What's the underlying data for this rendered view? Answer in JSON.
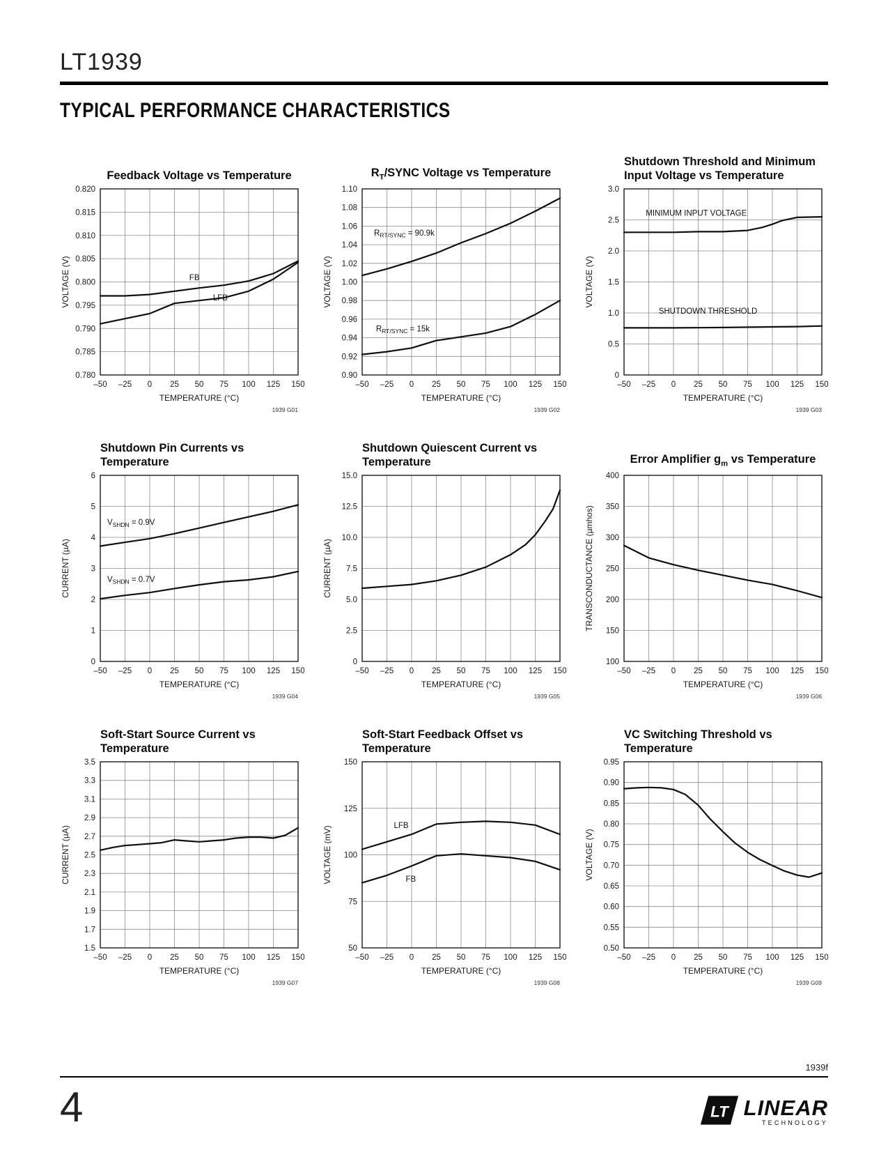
{
  "header": {
    "part": "LT1939",
    "section_title": "TYPICAL PERFORMANCE CHARACTERISTICS"
  },
  "footer": {
    "doc_code": "1939f",
    "page_number": "4",
    "logo": {
      "mark": "LT",
      "name": "LINEAR",
      "sub": "TECHNOLOGY"
    }
  },
  "chart_data": [
    {
      "type": "line",
      "ref": "1939 G01",
      "title_lines": [
        "Feedback Voltage vs Temperature"
      ],
      "xlabel": "TEMPERATURE (°C)",
      "ylabel": "VOLTAGE (V)",
      "xlim": [
        -50,
        150
      ],
      "xticks": [
        -50,
        -25,
        0,
        25,
        50,
        75,
        100,
        125,
        150
      ],
      "xticklabels": [
        "–50",
        "–25",
        "0",
        "25",
        "50",
        "75",
        "100",
        "125",
        "150"
      ],
      "ylim": [
        0.78,
        0.82
      ],
      "yticks": [
        0.78,
        0.785,
        0.79,
        0.795,
        0.8,
        0.805,
        0.81,
        0.815,
        0.82
      ],
      "yticklabels": [
        "0.780",
        "0.785",
        "0.790",
        "0.795",
        "0.800",
        "0.805",
        "0.810",
        "0.815",
        "0.820"
      ],
      "series": [
        {
          "name": "FB",
          "x": [
            -50,
            -25,
            0,
            25,
            50,
            75,
            100,
            125,
            150
          ],
          "y": [
            0.797,
            0.797,
            0.7973,
            0.798,
            0.7987,
            0.7993,
            0.8002,
            0.8018,
            0.8045
          ]
        },
        {
          "name": "LFB",
          "x": [
            -50,
            -25,
            0,
            25,
            50,
            75,
            100,
            125,
            150
          ],
          "y": [
            0.791,
            0.7921,
            0.7932,
            0.7954,
            0.796,
            0.7966,
            0.798,
            0.8006,
            0.8042
          ]
        }
      ],
      "labels": [
        {
          "text": "FB",
          "x": 40,
          "y": 0.8004,
          "anchor": "start"
        },
        {
          "text": "LFB",
          "x": 64,
          "y": 0.796,
          "anchor": "start"
        }
      ]
    },
    {
      "type": "line",
      "ref": "1939 G02",
      "title_lines": [
        "R_{T}/SYNC Voltage vs Temperature"
      ],
      "xlabel": "TEMPERATURE (°C)",
      "ylabel": "VOLTAGE (V)",
      "xlim": [
        -50,
        150
      ],
      "xticks": [
        -50,
        -25,
        0,
        25,
        50,
        75,
        100,
        125,
        150
      ],
      "xticklabels": [
        "–50",
        "–25",
        "0",
        "25",
        "50",
        "75",
        "100",
        "125",
        "150"
      ],
      "ylim": [
        0.9,
        1.1
      ],
      "yticks": [
        0.9,
        0.92,
        0.94,
        0.96,
        0.98,
        1.0,
        1.02,
        1.04,
        1.06,
        1.08,
        1.1
      ],
      "yticklabels": [
        "0.90",
        "0.92",
        "0.94",
        "0.96",
        "0.98",
        "1.00",
        "1.02",
        "1.04",
        "1.06",
        "1.08",
        "1.10"
      ],
      "series": [
        {
          "name": "RT-SYNC-90.9k",
          "x": [
            -50,
            -25,
            0,
            25,
            50,
            75,
            100,
            125,
            150
          ],
          "y": [
            1.007,
            1.014,
            1.022,
            1.031,
            1.042,
            1.052,
            1.063,
            1.076,
            1.09
          ]
        },
        {
          "name": "RT-SYNC-15k",
          "x": [
            -50,
            -25,
            0,
            25,
            50,
            75,
            100,
            125,
            150
          ],
          "y": [
            0.922,
            0.925,
            0.929,
            0.937,
            0.941,
            0.945,
            0.952,
            0.965,
            0.98
          ]
        }
      ],
      "labels": [
        {
          "text": "R_{RT/SYNC} = 90.9k",
          "x": -38,
          "y": 1.05,
          "anchor": "start"
        },
        {
          "text": "R_{RT/SYNC} = 15k",
          "x": -36,
          "y": 0.947,
          "anchor": "start"
        }
      ]
    },
    {
      "type": "line",
      "ref": "1939 G03",
      "title_lines": [
        "Shutdown Threshold and Minimum",
        "Input Voltage vs Temperature"
      ],
      "xlabel": "TEMPERATURE (°C)",
      "ylabel": "VOLTAGE (V)",
      "xlim": [
        -50,
        150
      ],
      "xticks": [
        -50,
        -25,
        0,
        25,
        50,
        75,
        100,
        125,
        150
      ],
      "xticklabels": [
        "–50",
        "–25",
        "0",
        "25",
        "50",
        "75",
        "100",
        "125",
        "150"
      ],
      "ylim": [
        0,
        3.0
      ],
      "yticks": [
        0,
        0.5,
        1.0,
        1.5,
        2.0,
        2.5,
        3.0
      ],
      "yticklabels": [
        "0",
        "0.5",
        "1.0",
        "1.5",
        "2.0",
        "2.5",
        "3.0"
      ],
      "series": [
        {
          "name": "minimum-input-voltage",
          "x": [
            -50,
            -25,
            0,
            25,
            50,
            75,
            90,
            100,
            110,
            125,
            150
          ],
          "y": [
            2.3,
            2.3,
            2.3,
            2.31,
            2.31,
            2.33,
            2.38,
            2.43,
            2.49,
            2.54,
            2.55
          ]
        },
        {
          "name": "shutdown-threshold",
          "x": [
            -50,
            0,
            50,
            100,
            125,
            150
          ],
          "y": [
            0.76,
            0.76,
            0.765,
            0.775,
            0.78,
            0.79
          ]
        }
      ],
      "labels": [
        {
          "text": "MINIMUM INPUT VOLTAGE",
          "x": -28,
          "y": 2.565,
          "anchor": "start"
        },
        {
          "text": "SHUTDOWN THRESHOLD",
          "x": -15,
          "y": 0.99,
          "anchor": "start"
        }
      ]
    },
    {
      "type": "line",
      "ref": "1939 G04",
      "title_lines": [
        "Shutdown Pin Currents vs",
        "Temperature"
      ],
      "xlabel": "TEMPERATURE (°C)",
      "ylabel": "CURRENT (µA)",
      "xlim": [
        -50,
        150
      ],
      "xticks": [
        -50,
        -25,
        0,
        25,
        50,
        75,
        100,
        125,
        150
      ],
      "xticklabels": [
        "–50",
        "–25",
        "0",
        "25",
        "50",
        "75",
        "100",
        "125",
        "150"
      ],
      "ylim": [
        0,
        6
      ],
      "yticks": [
        0,
        1,
        2,
        3,
        4,
        5,
        6
      ],
      "yticklabels": [
        "0",
        "1",
        "2",
        "3",
        "4",
        "5",
        "6"
      ],
      "series": [
        {
          "name": "vshdn-0.9v",
          "x": [
            -50,
            -25,
            0,
            25,
            50,
            75,
            100,
            125,
            150
          ],
          "y": [
            3.72,
            3.84,
            3.96,
            4.12,
            4.3,
            4.48,
            4.66,
            4.84,
            5.05
          ]
        },
        {
          "name": "vshdn-0.7v",
          "x": [
            -50,
            -25,
            0,
            25,
            50,
            75,
            100,
            125,
            150
          ],
          "y": [
            2.02,
            2.13,
            2.22,
            2.35,
            2.47,
            2.57,
            2.63,
            2.73,
            2.9
          ]
        }
      ],
      "labels": [
        {
          "text": "V_{SHDN} = 0.9V",
          "x": -43,
          "y": 4.4,
          "anchor": "start"
        },
        {
          "text": "V_{SHDN} = 0.7V",
          "x": -43,
          "y": 2.56,
          "anchor": "start"
        }
      ]
    },
    {
      "type": "line",
      "ref": "1939 G05",
      "title_lines": [
        "Shutdown Quiescent Current vs",
        "Temperature"
      ],
      "xlabel": "TEMPERATURE (°C)",
      "ylabel": "CURRENT (µA)",
      "xlim": [
        -50,
        150
      ],
      "xticks": [
        -50,
        -25,
        0,
        25,
        50,
        75,
        100,
        125,
        150
      ],
      "xticklabels": [
        "–50",
        "–25",
        "0",
        "25",
        "50",
        "75",
        "100",
        "125",
        "150"
      ],
      "ylim": [
        0,
        15.0
      ],
      "yticks": [
        0,
        2.5,
        5.0,
        7.5,
        10.0,
        12.5,
        15.0
      ],
      "yticklabels": [
        "0",
        "2.5",
        "5.0",
        "7.5",
        "10.0",
        "12.5",
        "15.0"
      ],
      "series": [
        {
          "name": "shutdown-quiescent",
          "x": [
            -50,
            -25,
            0,
            25,
            50,
            75,
            100,
            115,
            125,
            135,
            143,
            150
          ],
          "y": [
            5.9,
            6.05,
            6.2,
            6.5,
            6.95,
            7.6,
            8.6,
            9.4,
            10.2,
            11.3,
            12.3,
            13.8
          ]
        }
      ],
      "labels": []
    },
    {
      "type": "line",
      "ref": "1939 G06",
      "title_lines": [
        "Error Amplifier g_{m} vs Temperature"
      ],
      "xlabel": "TEMPERATURE (°C)",
      "ylabel": "TRANSCONDUCTANCE (µmhos)",
      "xlim": [
        -50,
        150
      ],
      "xticks": [
        -50,
        -25,
        0,
        25,
        50,
        75,
        100,
        125,
        150
      ],
      "xticklabels": [
        "–50",
        "–25",
        "0",
        "25",
        "50",
        "75",
        "100",
        "125",
        "150"
      ],
      "ylim": [
        100,
        400
      ],
      "yticks": [
        100,
        150,
        200,
        250,
        300,
        350,
        400
      ],
      "yticklabels": [
        "100",
        "150",
        "200",
        "250",
        "300",
        "350",
        "400"
      ],
      "series": [
        {
          "name": "gm",
          "x": [
            -50,
            -25,
            0,
            25,
            50,
            75,
            100,
            125,
            150
          ],
          "y": [
            287,
            267,
            256,
            247,
            239,
            231,
            224,
            214,
            203
          ]
        }
      ],
      "labels": []
    },
    {
      "type": "line",
      "ref": "1939 G07",
      "title_lines": [
        "Soft-Start Source Current vs",
        "Temperature"
      ],
      "xlabel": "TEMPERATURE (°C)",
      "ylabel": "CURRENT (µA)",
      "xlim": [
        -50,
        150
      ],
      "xticks": [
        -50,
        -25,
        0,
        25,
        50,
        75,
        100,
        125,
        150
      ],
      "xticklabels": [
        "–50",
        "–25",
        "0",
        "25",
        "50",
        "75",
        "100",
        "125",
        "150"
      ],
      "ylim": [
        1.5,
        3.5
      ],
      "yticks": [
        1.5,
        1.7,
        1.9,
        2.1,
        2.3,
        2.5,
        2.7,
        2.9,
        3.1,
        3.3,
        3.5
      ],
      "yticklabels": [
        "1.5",
        "1.7",
        "1.9",
        "2.1",
        "2.3",
        "2.5",
        "2.7",
        "2.9",
        "3.1",
        "3.3",
        "3.5"
      ],
      "series": [
        {
          "name": "soft-start-current",
          "x": [
            -50,
            -37,
            -25,
            -12,
            0,
            12,
            25,
            37,
            50,
            62,
            75,
            87,
            100,
            112,
            125,
            137,
            150
          ],
          "y": [
            2.55,
            2.58,
            2.6,
            2.61,
            2.62,
            2.63,
            2.66,
            2.65,
            2.64,
            2.65,
            2.66,
            2.68,
            2.69,
            2.69,
            2.68,
            2.71,
            2.79
          ]
        }
      ],
      "labels": []
    },
    {
      "type": "line",
      "ref": "1939 G08",
      "title_lines": [
        "Soft-Start Feedback Offset vs",
        "Temperature"
      ],
      "xlabel": "TEMPERATURE (°C)",
      "ylabel": "VOLTAGE (mV)",
      "xlim": [
        -50,
        150
      ],
      "xticks": [
        -50,
        -25,
        0,
        25,
        50,
        75,
        100,
        125,
        150
      ],
      "xticklabels": [
        "–50",
        "–25",
        "0",
        "25",
        "50",
        "75",
        "100",
        "125",
        "150"
      ],
      "ylim": [
        50,
        150
      ],
      "yticks": [
        50,
        75,
        100,
        125,
        150
      ],
      "yticklabels": [
        "50",
        "75",
        "100",
        "125",
        "150"
      ],
      "series": [
        {
          "name": "LFB",
          "x": [
            -50,
            -25,
            0,
            25,
            50,
            75,
            100,
            125,
            150
          ],
          "y": [
            103,
            107,
            111,
            116.5,
            117.5,
            118,
            117.5,
            116,
            111
          ]
        },
        {
          "name": "FB",
          "x": [
            -50,
            -25,
            0,
            25,
            50,
            75,
            100,
            125,
            150
          ],
          "y": [
            85,
            89,
            94,
            99.5,
            100.5,
            99.5,
            98.5,
            96.5,
            92
          ]
        }
      ],
      "labels": [
        {
          "text": "LFB",
          "x": -18,
          "y": 114.5,
          "anchor": "start"
        },
        {
          "text": "FB",
          "x": -6,
          "y": 85.5,
          "anchor": "start"
        }
      ]
    },
    {
      "type": "line",
      "ref": "1939 G09",
      "title_lines": [
        "VC Switching Threshold vs",
        "Temperature"
      ],
      "xlabel": "TEMPERATURE (°C)",
      "ylabel": "VOLTAGE (V)",
      "xlim": [
        -50,
        150
      ],
      "xticks": [
        -50,
        -25,
        0,
        25,
        50,
        75,
        100,
        125,
        150
      ],
      "xticklabels": [
        "–50",
        "–25",
        "0",
        "25",
        "50",
        "75",
        "100",
        "125",
        "150"
      ],
      "ylim": [
        0.5,
        0.95
      ],
      "yticks": [
        0.5,
        0.55,
        0.6,
        0.65,
        0.7,
        0.75,
        0.8,
        0.85,
        0.9,
        0.95
      ],
      "yticklabels": [
        "0.50",
        "0.55",
        "0.60",
        "0.65",
        "0.70",
        "0.75",
        "0.80",
        "0.85",
        "0.90",
        "0.95"
      ],
      "series": [
        {
          "name": "vc-threshold",
          "x": [
            -50,
            -37,
            -25,
            -12,
            0,
            12,
            25,
            37,
            50,
            62,
            75,
            87,
            100,
            112,
            125,
            137,
            150
          ],
          "y": [
            0.885,
            0.887,
            0.888,
            0.887,
            0.883,
            0.871,
            0.845,
            0.812,
            0.781,
            0.754,
            0.731,
            0.714,
            0.699,
            0.686,
            0.676,
            0.671,
            0.681
          ]
        }
      ],
      "labels": []
    }
  ]
}
